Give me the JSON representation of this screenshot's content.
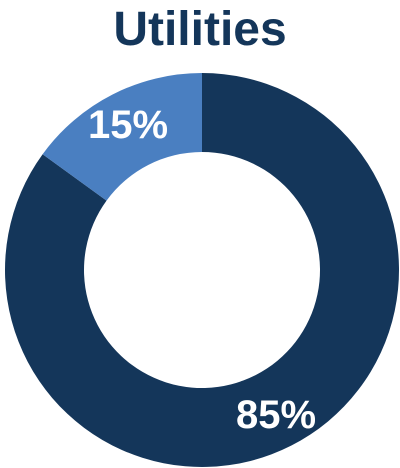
{
  "chart_data": {
    "type": "pie",
    "title": "Utilities",
    "donut": true,
    "categories": [
      "",
      ""
    ],
    "values": [
      85,
      15
    ],
    "labels": [
      "85%",
      "15%"
    ],
    "colors": [
      "#14365a",
      "#4a7fc1"
    ]
  }
}
